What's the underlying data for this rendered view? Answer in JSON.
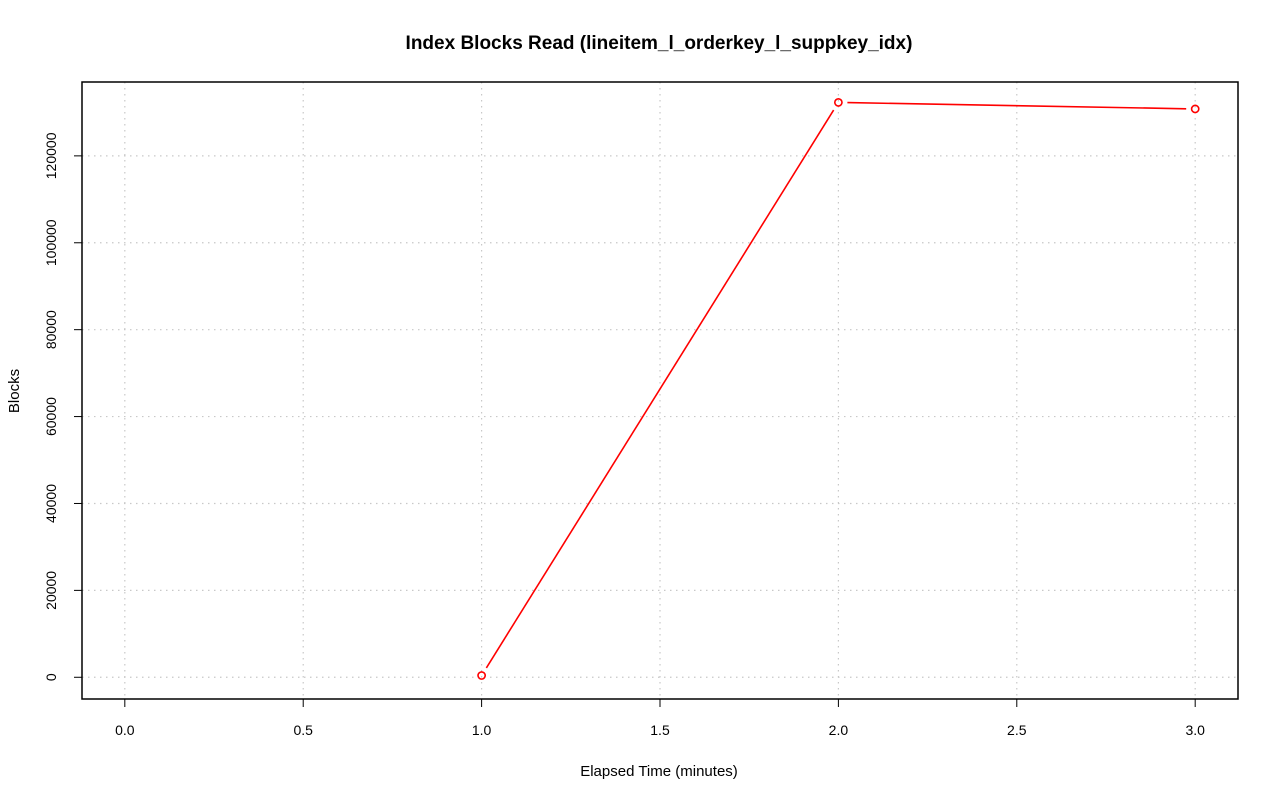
{
  "chart_data": {
    "type": "line",
    "title": "Index Blocks Read (lineitem_l_orderkey_l_suppkey_idx)",
    "xlabel": "Elapsed Time (minutes)",
    "ylabel": "Blocks",
    "xlim": [
      -0.12,
      3.12
    ],
    "ylim": [
      -5000,
      137000
    ],
    "x_ticks": [
      0.0,
      0.5,
      1.0,
      1.5,
      2.0,
      2.5,
      3.0
    ],
    "x_tick_labels": [
      "0.0",
      "0.5",
      "1.0",
      "1.5",
      "2.0",
      "2.5",
      "3.0"
    ],
    "y_ticks": [
      0,
      20000,
      40000,
      60000,
      80000,
      100000,
      120000
    ],
    "y_tick_labels": [
      "0",
      "20000",
      "40000",
      "60000",
      "80000",
      "100000",
      "120000"
    ],
    "grid": true,
    "series": [
      {
        "color": "#ff0000",
        "marker": "open-circle",
        "x": [
          1.0,
          2.0,
          3.0
        ],
        "values": [
          400,
          132300,
          130800
        ]
      }
    ]
  }
}
